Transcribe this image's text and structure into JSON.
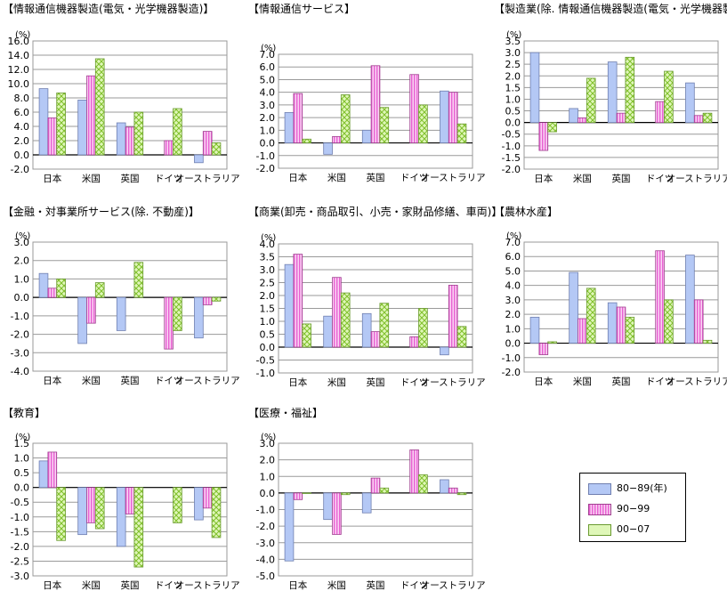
{
  "colors": {
    "s1": "#b4c8f5",
    "s2": "#f5a0e6",
    "s3": "#c8f08c"
  },
  "legend": [
    {
      "key": "s1",
      "label": "80−89(年)"
    },
    {
      "key": "s2",
      "label": "90−99"
    },
    {
      "key": "s3",
      "label": "00−07"
    }
  ],
  "chart_data": [
    {
      "type": "bar",
      "title": "【情報通信機器製造(電気・光学機器製造)】",
      "unit": "(%)",
      "categories": [
        "日本",
        "米国",
        "英国",
        "ドイツ",
        "オーストラリア"
      ],
      "ylim": [
        -2.0,
        16.0
      ],
      "step": 2.0,
      "yticks": [
        "16.0",
        "14.0",
        "12.0",
        "10.0",
        "8.0",
        "6.0",
        "4.0",
        "2.0",
        "0.0",
        "-2.0"
      ],
      "series": [
        {
          "name": "80−89(年)",
          "values": [
            9.3,
            7.7,
            4.5,
            null,
            -1.1
          ]
        },
        {
          "name": "90−99",
          "values": [
            5.2,
            11.1,
            3.9,
            2.0,
            3.3
          ]
        },
        {
          "name": "00−07",
          "values": [
            8.7,
            13.5,
            6.0,
            6.5,
            1.7
          ]
        }
      ]
    },
    {
      "type": "bar",
      "title": "【情報通信サービス】",
      "unit": "(%)",
      "categories": [
        "日本",
        "米国",
        "英国",
        "ドイツ",
        "オーストラリア"
      ],
      "ylim": [
        -2.0,
        7.0
      ],
      "step": 1.0,
      "yticks": [
        "7.0",
        "6.0",
        "5.0",
        "4.0",
        "3.0",
        "2.0",
        "1.0",
        "0.0",
        "-1.0",
        "-2.0"
      ],
      "series": [
        {
          "name": "80−89(年)",
          "values": [
            2.4,
            -0.9,
            1.0,
            null,
            4.1
          ]
        },
        {
          "name": "90−99",
          "values": [
            3.9,
            0.5,
            6.1,
            5.4,
            4.0
          ]
        },
        {
          "name": "00−07",
          "values": [
            0.3,
            3.8,
            2.8,
            3.0,
            1.5
          ]
        }
      ]
    },
    {
      "type": "bar",
      "title": "【製造業(除. 情報通信機器製造(電気・光学機器製造)】",
      "unit": "(%)",
      "categories": [
        "日本",
        "米国",
        "英国",
        "ドイツ",
        "オーストラリア"
      ],
      "ylim": [
        -2.0,
        3.5
      ],
      "step": 0.5,
      "yticks": [
        "3.5",
        "3.0",
        "2.5",
        "2.0",
        "1.5",
        "1.0",
        "0.5",
        "0.0",
        "-0.5",
        "-1.0",
        "-1.5",
        "-2.0"
      ],
      "series": [
        {
          "name": "80−89(年)",
          "values": [
            3.0,
            0.6,
            2.6,
            null,
            1.7
          ]
        },
        {
          "name": "90−99",
          "values": [
            -1.2,
            0.2,
            0.4,
            0.9,
            0.3
          ]
        },
        {
          "name": "00−07",
          "values": [
            -0.4,
            1.9,
            2.8,
            2.2,
            0.4
          ]
        }
      ]
    },
    {
      "type": "bar",
      "title": "【金融・対事業所サービス(除. 不動産)】",
      "unit": "(%)",
      "categories": [
        "日本",
        "米国",
        "英国",
        "ドイツ",
        "オーストラリア"
      ],
      "ylim": [
        -4.0,
        3.0
      ],
      "step": 1.0,
      "yticks": [
        "3.0",
        "2.0",
        "1.0",
        "0.0",
        "-1.0",
        "-2.0",
        "-3.0",
        "-4.0"
      ],
      "series": [
        {
          "name": "80−89(年)",
          "values": [
            1.3,
            -2.5,
            -1.8,
            null,
            -2.2
          ]
        },
        {
          "name": "90−99",
          "values": [
            0.5,
            -1.4,
            null,
            -2.8,
            -0.4
          ]
        },
        {
          "name": "00−07",
          "values": [
            1.0,
            0.8,
            1.9,
            -1.8,
            -0.2
          ]
        }
      ]
    },
    {
      "type": "bar",
      "title": "【商業(卸売・商品取引、小売・家財品修繕、車両)】",
      "unit": "(%)",
      "categories": [
        "日本",
        "米国",
        "英国",
        "ドイツ",
        "オーストラリア"
      ],
      "ylim": [
        -1.0,
        4.0
      ],
      "step": 0.5,
      "yticks": [
        "4.0",
        "3.5",
        "3.0",
        "2.5",
        "2.0",
        "1.5",
        "1.0",
        "0.5",
        "0.0",
        "-0.5",
        "-1.0"
      ],
      "series": [
        {
          "name": "80−89(年)",
          "values": [
            3.2,
            1.2,
            1.3,
            null,
            -0.3
          ]
        },
        {
          "name": "90−99",
          "values": [
            3.6,
            2.7,
            0.6,
            0.4,
            2.4
          ]
        },
        {
          "name": "00−07",
          "values": [
            0.9,
            2.1,
            1.7,
            1.5,
            0.8
          ]
        }
      ]
    },
    {
      "type": "bar",
      "title": "【農林水産】",
      "unit": "(%)",
      "categories": [
        "日本",
        "米国",
        "英国",
        "ドイツ",
        "オーストラリア"
      ],
      "ylim": [
        -2.0,
        7.0
      ],
      "step": 1.0,
      "yticks": [
        "7.0",
        "6.0",
        "5.0",
        "4.0",
        "3.0",
        "2.0",
        "1.0",
        "0.0",
        "-1.0",
        "-2.0"
      ],
      "series": [
        {
          "name": "80−89(年)",
          "values": [
            1.8,
            4.9,
            2.8,
            null,
            6.1
          ]
        },
        {
          "name": "90−99",
          "values": [
            -0.8,
            1.7,
            2.5,
            6.4,
            3.0
          ]
        },
        {
          "name": "00−07",
          "values": [
            0.1,
            3.8,
            1.8,
            3.0,
            0.2
          ]
        }
      ]
    },
    {
      "type": "bar",
      "title": "【教育】",
      "unit": "(%)",
      "categories": [
        "日本",
        "米国",
        "英国",
        "ドイツ",
        "オーストラリア"
      ],
      "ylim": [
        -3.0,
        1.5
      ],
      "step": 0.5,
      "yticks": [
        "1.5",
        "1.0",
        "0.5",
        "0.0",
        "-0.5",
        "-1.0",
        "-1.5",
        "-2.0",
        "-2.5",
        "-3.0"
      ],
      "series": [
        {
          "name": "80−89(年)",
          "values": [
            0.9,
            -1.6,
            -2.0,
            null,
            -1.1
          ]
        },
        {
          "name": "90−99",
          "values": [
            1.2,
            -1.2,
            -0.9,
            null,
            -0.7
          ]
        },
        {
          "name": "00−07",
          "values": [
            -1.8,
            -1.4,
            -2.7,
            -1.2,
            -1.7
          ]
        }
      ]
    },
    {
      "type": "bar",
      "title": "【医療・福祉】",
      "unit": "(%)",
      "categories": [
        "日本",
        "米国",
        "英国",
        "ドイツ",
        "オーストラリア"
      ],
      "ylim": [
        -5.0,
        3.0
      ],
      "step": 1.0,
      "yticks": [
        "3.0",
        "2.0",
        "1.0",
        "0.0",
        "-1.0",
        "-2.0",
        "-3.0",
        "-4.0",
        "-5.0"
      ],
      "series": [
        {
          "name": "80−89(年)",
          "values": [
            -4.1,
            -1.6,
            -1.2,
            null,
            0.8
          ]
        },
        {
          "name": "90−99",
          "values": [
            -0.4,
            -2.5,
            0.9,
            2.6,
            0.3
          ]
        },
        {
          "name": "00−07",
          "values": [
            0.0,
            -0.1,
            0.3,
            1.1,
            -0.1
          ]
        }
      ]
    }
  ]
}
